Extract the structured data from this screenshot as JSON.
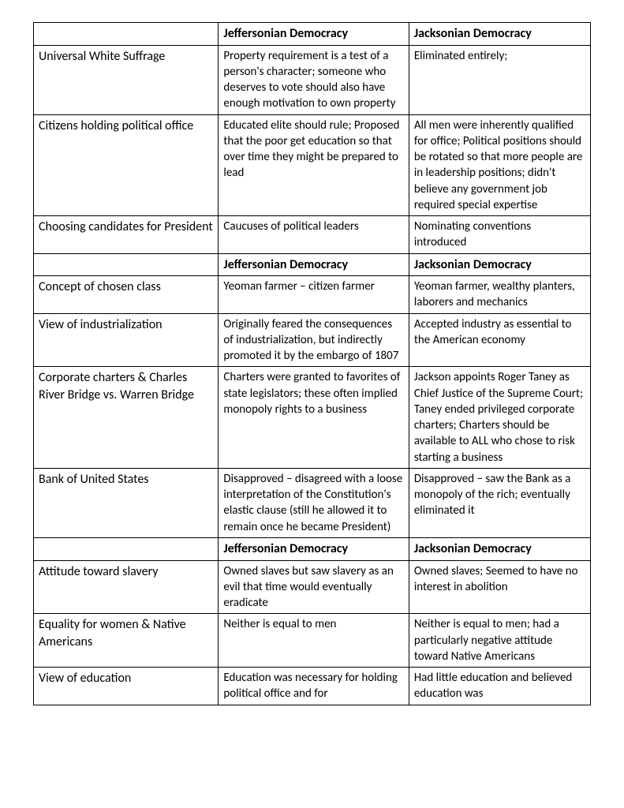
{
  "headers": {
    "col2": "Jeffersonian Democracy",
    "col3": "Jacksonian Democracy"
  },
  "rows": [
    {
      "type": "header"
    },
    {
      "type": "data",
      "topic": "Universal White Suffrage",
      "jeff": "Property requirement is a test of a person's character; someone who deserves to vote should also have enough motivation to own property",
      "jack": "Eliminated entirely;"
    },
    {
      "type": "data",
      "topic": "Citizens holding political office",
      "jeff": "Educated elite should rule; Proposed that the poor get education so that over time they might be prepared to lead",
      "jack": "All men were inherently qualified for office; Political positions should be rotated so that more people are in leadership positions; didn't believe any government job required special expertise"
    },
    {
      "type": "data",
      "topic": "Choosing candidates for President",
      "jeff": "Caucuses of political leaders",
      "jack": "Nominating conventions introduced"
    },
    {
      "type": "header"
    },
    {
      "type": "data",
      "topic": "Concept of chosen class",
      "jeff": "Yeoman farmer – citizen farmer",
      "jack": "Yeoman farmer, wealthy planters, laborers and mechanics"
    },
    {
      "type": "data",
      "topic": "View of industrialization",
      "jeff": "Originally feared the consequences of industrialization, but indirectly promoted it by the embargo of 1807",
      "jack": "Accepted industry as essential to the American economy"
    },
    {
      "type": "data",
      "topic": "Corporate charters & Charles River Bridge vs. Warren Bridge",
      "jeff": "Charters were granted to favorites of state legislators; these often implied monopoly rights to a business",
      "jack": "Jackson appoints Roger Taney as Chief Justice of the Supreme Court; Taney ended privileged corporate charters; Charters should be available to ALL who chose to risk starting a business"
    },
    {
      "type": "data",
      "topic": "Bank of United States",
      "jeff": "Disapproved – disagreed with a loose interpretation of the Constitution's elastic clause (still he allowed it to remain once he became President)",
      "jack": "Disapproved – saw the Bank as a monopoly of the rich; eventually eliminated it"
    },
    {
      "type": "header"
    },
    {
      "type": "data",
      "topic": "Attitude toward slavery",
      "jeff": "Owned slaves but saw slavery as an evil that time would eventually eradicate",
      "jack": "Owned slaves; Seemed to have no interest in abolition"
    },
    {
      "type": "data",
      "topic": "Equality for women & Native Americans",
      "jeff": "Neither is equal to men",
      "jack": "Neither is equal to men; had a particularly negative attitude toward Native Americans"
    },
    {
      "type": "data",
      "topic": "View of education",
      "jeff": "Education was necessary for holding political office and for",
      "jack": "Had little education and believed education was"
    }
  ]
}
